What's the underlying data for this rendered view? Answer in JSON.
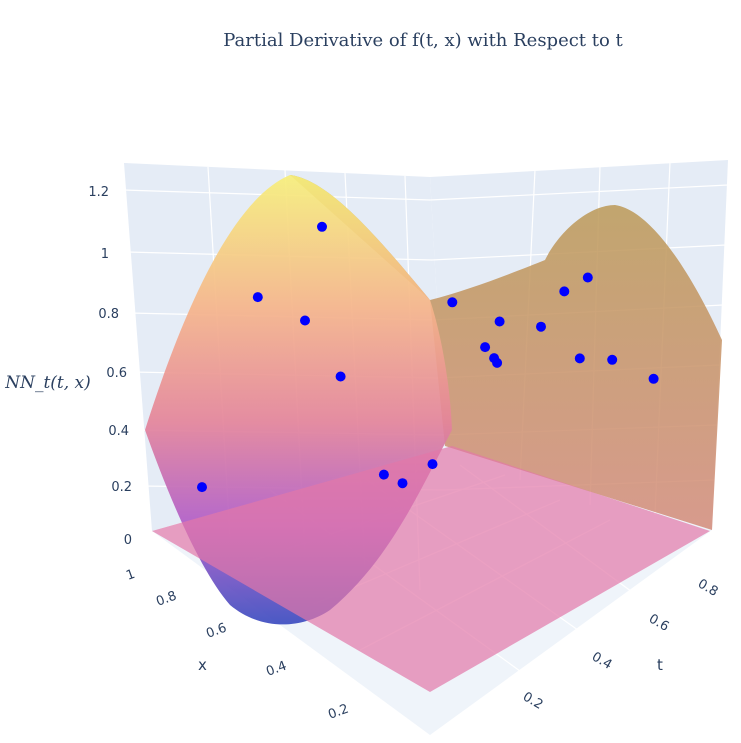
{
  "chart_data": {
    "type": "surface3d",
    "title": "Partial Derivative of f(t, x) with Respect to t",
    "xlabel": "t",
    "ylabel": "x",
    "zlabel": "NN_t(t, x)",
    "x_ticks": [
      "0.2",
      "0.4",
      "0.6",
      "0.8"
    ],
    "y_ticks": [
      "0.2",
      "0.4",
      "0.6",
      "0.8",
      "1"
    ],
    "z_ticks": [
      "0",
      "0.2",
      "0.4",
      "0.6",
      "0.8",
      "1",
      "1.2"
    ],
    "xlim": [
      0,
      0.9
    ],
    "ylim": [
      0,
      1
    ],
    "zlim": [
      0,
      1.25
    ],
    "zero_plane": 0,
    "surface_colorscale": [
      "#3b4cc0",
      "#b05cc8",
      "#e4849a",
      "#f5b38a",
      "#f7ef7a"
    ],
    "plane_color": "#e377a8",
    "point_color": "#0000ff",
    "points": [
      {
        "t": 0.05,
        "x": 0.88,
        "z": 0.18
      },
      {
        "t": 0.03,
        "x": 0.45,
        "z": 1.22
      },
      {
        "t": 0.08,
        "x": 0.72,
        "z": 1.02
      },
      {
        "t": 0.18,
        "x": 0.66,
        "z": 0.93
      },
      {
        "t": 0.3,
        "x": 0.66,
        "z": 0.72
      },
      {
        "t": 0.4,
        "x": 0.55,
        "z": 0.22
      },
      {
        "t": 0.12,
        "x": 0.33,
        "z": 0.05
      },
      {
        "t": 0.58,
        "x": 0.63,
        "z": 0.42
      },
      {
        "t": 0.4,
        "x": 0.38,
        "z": 1.0
      },
      {
        "t": 0.5,
        "x": 0.32,
        "z": 0.93
      },
      {
        "t": 0.56,
        "x": 0.43,
        "z": 0.88
      },
      {
        "t": 0.6,
        "x": 0.44,
        "z": 0.85
      },
      {
        "t": 0.62,
        "x": 0.45,
        "z": 0.84
      },
      {
        "t": 0.62,
        "x": 0.3,
        "z": 0.95
      },
      {
        "t": 0.58,
        "x": 0.18,
        "z": 1.05
      },
      {
        "t": 0.6,
        "x": 0.12,
        "z": 1.1
      },
      {
        "t": 0.8,
        "x": 0.35,
        "z": 0.9
      },
      {
        "t": 0.86,
        "x": 0.3,
        "z": 0.9
      },
      {
        "t": 0.95,
        "x": 0.25,
        "z": 0.83
      }
    ]
  }
}
